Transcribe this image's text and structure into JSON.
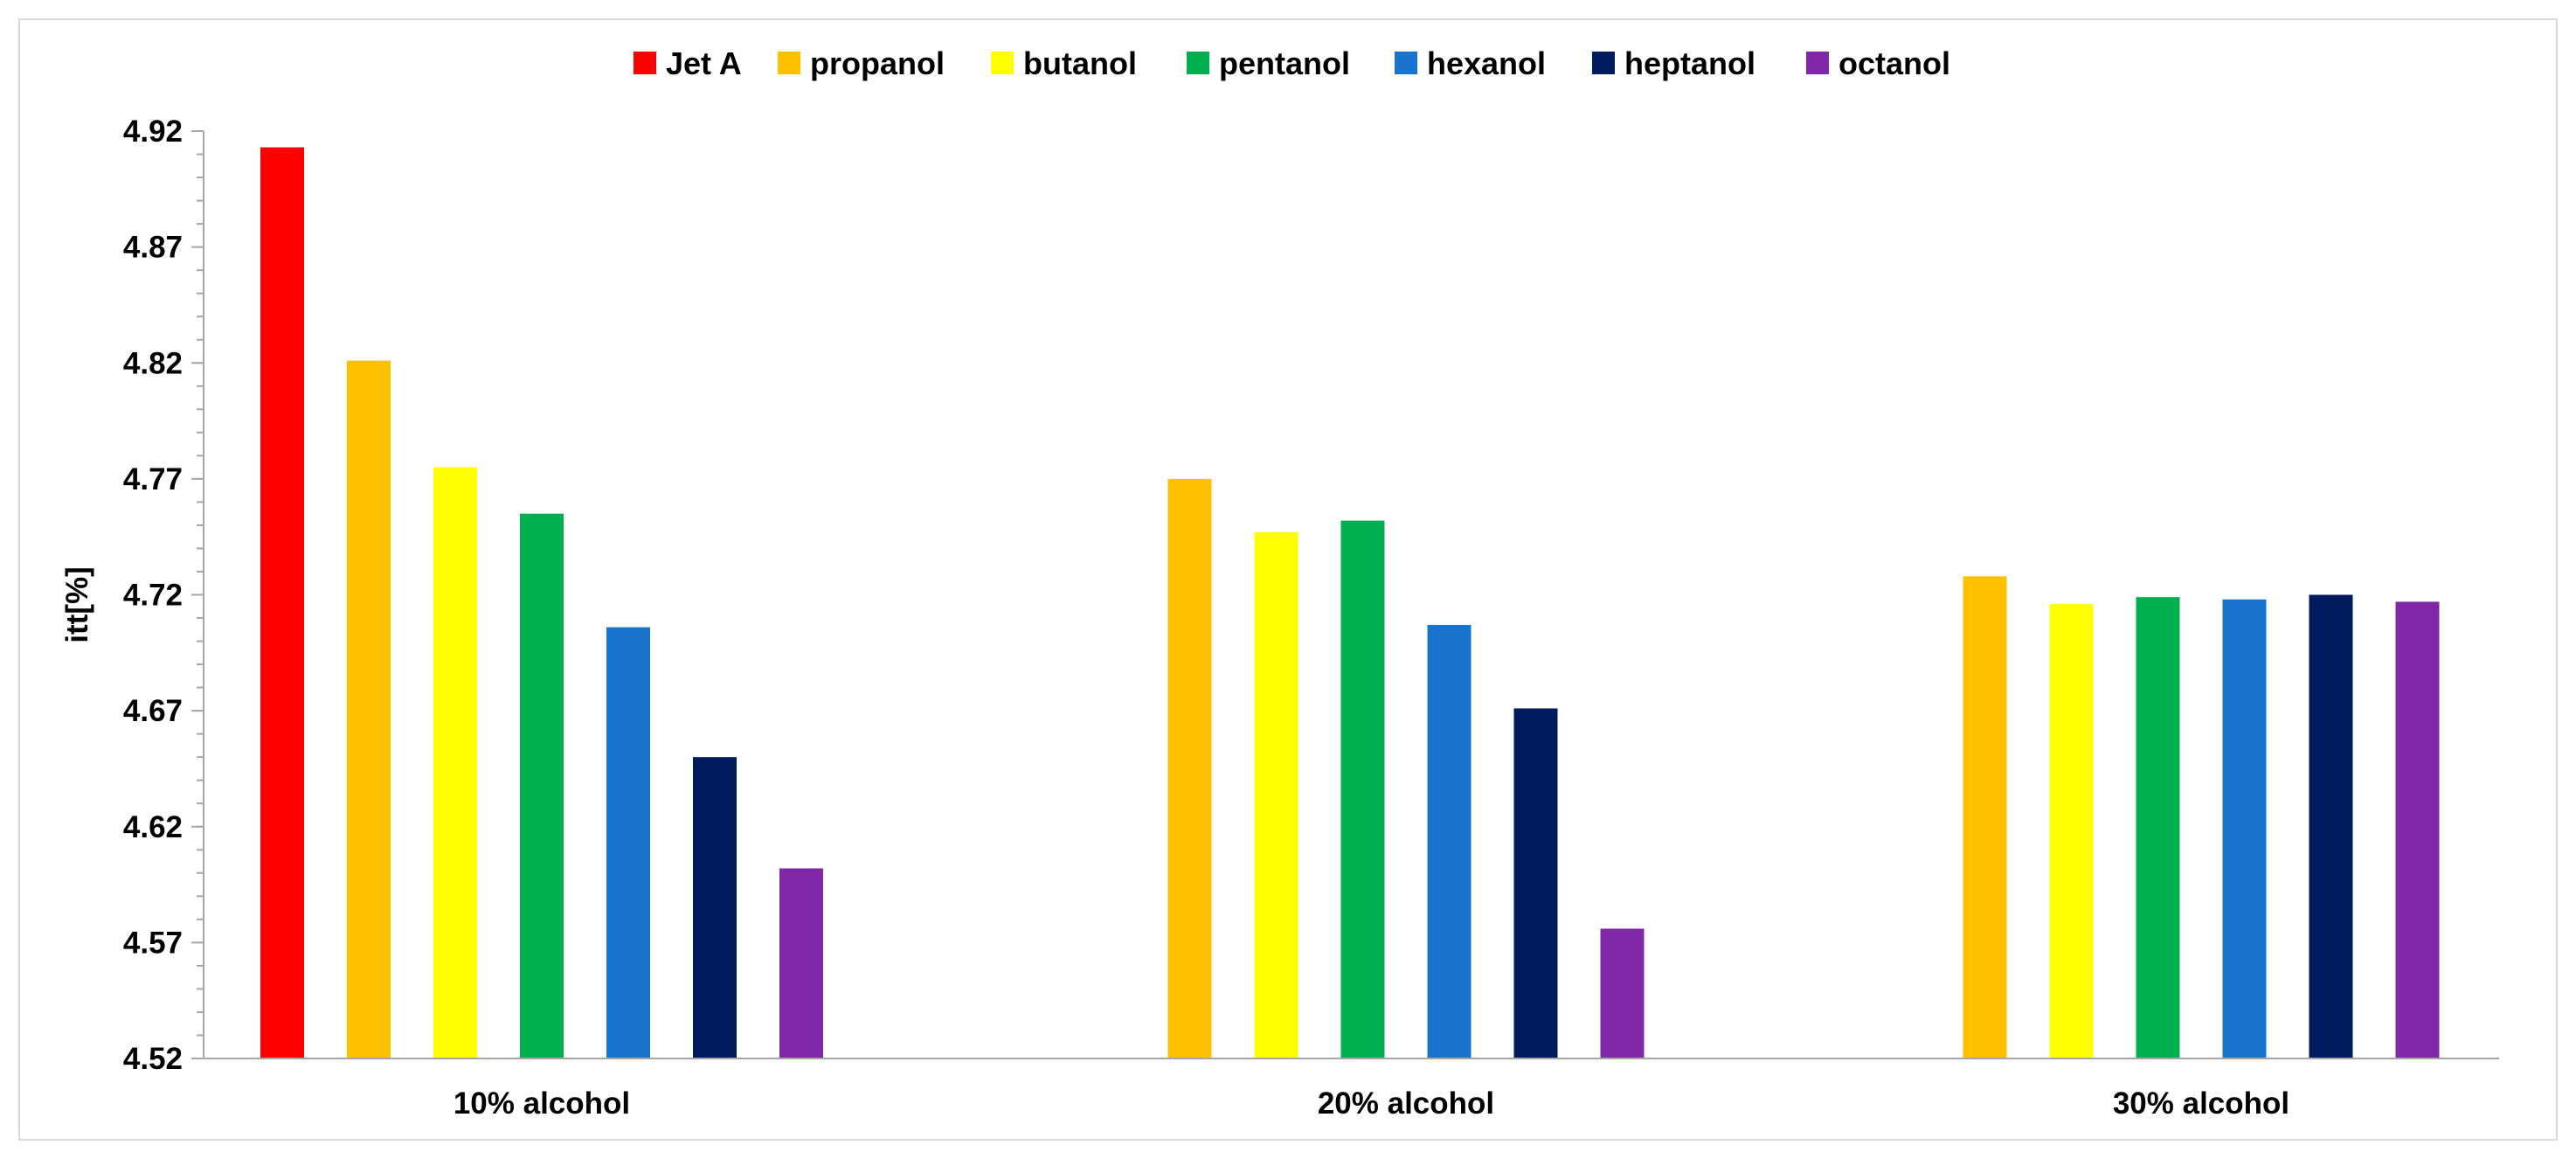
{
  "chart_data": {
    "type": "bar",
    "title": "",
    "xlabel": "",
    "ylabel": "itt[%]",
    "ylim": [
      4.52,
      4.92
    ],
    "yticks": [
      "4.52",
      "4.57",
      "4.62",
      "4.67",
      "4.72",
      "4.77",
      "4.82",
      "4.87",
      "4.92"
    ],
    "y_minor_step": 0.01,
    "grid": false,
    "legend_position": "top-center",
    "categories": [
      "10% alcohol",
      "20% alcohol",
      "30% alcohol"
    ],
    "series": [
      {
        "name": "Jet A",
        "color": "#ff0000",
        "values": [
          4.913,
          null,
          null
        ]
      },
      {
        "name": "propanol",
        "color": "#ffc000",
        "values": [
          4.821,
          4.77,
          4.728
        ]
      },
      {
        "name": "butanol",
        "color": "#ffff00",
        "values": [
          4.775,
          4.747,
          4.716
        ]
      },
      {
        "name": "pentanol",
        "color": "#00b050",
        "values": [
          4.755,
          4.752,
          4.719
        ]
      },
      {
        "name": "hexanol",
        "color": "#1874cd",
        "values": [
          4.706,
          4.707,
          4.718
        ]
      },
      {
        "name": "heptanol",
        "color": "#001a5e",
        "values": [
          4.65,
          4.671,
          4.72
        ]
      },
      {
        "name": "octanol",
        "color": "#8128a8",
        "values": [
          4.602,
          4.576,
          4.717
        ]
      }
    ]
  }
}
